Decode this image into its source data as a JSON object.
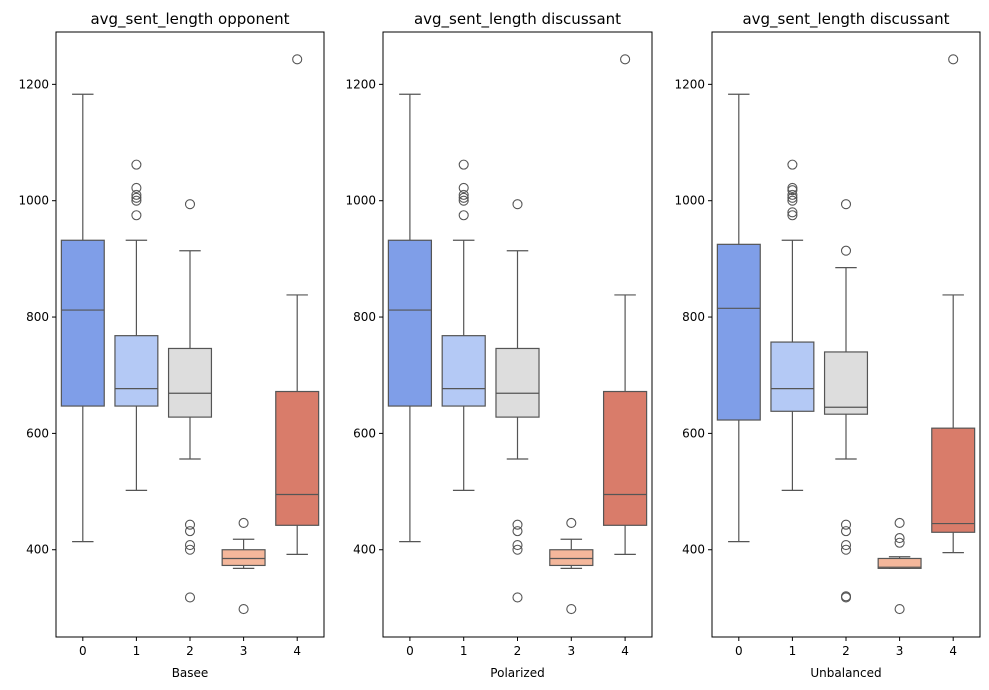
{
  "chart_data": [
    {
      "type": "box",
      "title": "avg_sent_length opponent",
      "xlabel": "Basee",
      "ylabel": "",
      "categories": [
        "0",
        "1",
        "2",
        "3",
        "4"
      ],
      "yticks": [
        400,
        600,
        800,
        1000,
        1200
      ],
      "ylim": [
        250,
        1290
      ],
      "grid": false,
      "boxes": [
        {
          "category": "0",
          "color": "#7f9ee8",
          "whisker_low": 414,
          "q1": 647,
          "median": 812,
          "q3": 932,
          "whisker_high": 1183,
          "outliers": []
        },
        {
          "category": "1",
          "color": "#b4c9f5",
          "whisker_low": 502,
          "q1": 647,
          "median": 677,
          "q3": 768,
          "whisker_high": 932,
          "outliers": [
            975,
            1000,
            1005,
            1010,
            1022,
            1062
          ]
        },
        {
          "category": "2",
          "color": "#dddddd",
          "whisker_low": 556,
          "q1": 628,
          "median": 669,
          "q3": 746,
          "whisker_high": 914,
          "outliers": [
            318,
            400,
            408,
            432,
            443,
            994
          ]
        },
        {
          "category": "3",
          "color": "#f4b79b",
          "whisker_low": 368,
          "q1": 373,
          "median": 385,
          "q3": 400,
          "whisker_high": 418,
          "outliers": [
            298,
            446
          ]
        },
        {
          "category": "4",
          "color": "#d97c6a",
          "whisker_low": 392,
          "q1": 442,
          "median": 495,
          "q3": 672,
          "whisker_high": 838,
          "outliers": [
            1243
          ]
        }
      ]
    },
    {
      "type": "box",
      "title": "avg_sent_length discussant",
      "xlabel": "Polarized",
      "ylabel": "",
      "categories": [
        "0",
        "1",
        "2",
        "3",
        "4"
      ],
      "yticks": [
        400,
        600,
        800,
        1000,
        1200
      ],
      "ylim": [
        250,
        1290
      ],
      "grid": false,
      "boxes": [
        {
          "category": "0",
          "color": "#7f9ee8",
          "whisker_low": 414,
          "q1": 647,
          "median": 812,
          "q3": 932,
          "whisker_high": 1183,
          "outliers": []
        },
        {
          "category": "1",
          "color": "#b4c9f5",
          "whisker_low": 502,
          "q1": 647,
          "median": 677,
          "q3": 768,
          "whisker_high": 932,
          "outliers": [
            975,
            1000,
            1005,
            1010,
            1022,
            1062
          ]
        },
        {
          "category": "2",
          "color": "#dddddd",
          "whisker_low": 556,
          "q1": 628,
          "median": 669,
          "q3": 746,
          "whisker_high": 914,
          "outliers": [
            318,
            400,
            408,
            432,
            443,
            994
          ]
        },
        {
          "category": "3",
          "color": "#f4b79b",
          "whisker_low": 368,
          "q1": 373,
          "median": 385,
          "q3": 400,
          "whisker_high": 418,
          "outliers": [
            298,
            446
          ]
        },
        {
          "category": "4",
          "color": "#d97c6a",
          "whisker_low": 392,
          "q1": 442,
          "median": 495,
          "q3": 672,
          "whisker_high": 838,
          "outliers": [
            1243
          ]
        }
      ]
    },
    {
      "type": "box",
      "title": "avg_sent_length discussant",
      "xlabel": "Unbalanced",
      "ylabel": "",
      "categories": [
        "0",
        "1",
        "2",
        "3",
        "4"
      ],
      "yticks": [
        400,
        600,
        800,
        1000,
        1200
      ],
      "ylim": [
        250,
        1290
      ],
      "grid": false,
      "boxes": [
        {
          "category": "0",
          "color": "#7f9ee8",
          "whisker_low": 414,
          "q1": 623,
          "median": 815,
          "q3": 925,
          "whisker_high": 1183,
          "outliers": []
        },
        {
          "category": "1",
          "color": "#b4c9f5",
          "whisker_low": 502,
          "q1": 638,
          "median": 677,
          "q3": 757,
          "whisker_high": 932,
          "outliers": [
            975,
            980,
            1000,
            1005,
            1010,
            1018,
            1022,
            1062
          ]
        },
        {
          "category": "2",
          "color": "#dddddd",
          "whisker_low": 556,
          "q1": 633,
          "median": 645,
          "q3": 740,
          "whisker_high": 885,
          "outliers": [
            318,
            320,
            400,
            408,
            432,
            443,
            914,
            994
          ]
        },
        {
          "category": "3",
          "color": "#f4b79b",
          "whisker_low": 368,
          "q1": 368,
          "median": 370,
          "q3": 385,
          "whisker_high": 388,
          "outliers": [
            298,
            412,
            420,
            446
          ]
        },
        {
          "category": "4",
          "color": "#d97c6a",
          "whisker_low": 395,
          "q1": 430,
          "median": 445,
          "q3": 609,
          "whisker_high": 838,
          "outliers": [
            1243
          ]
        }
      ]
    }
  ]
}
